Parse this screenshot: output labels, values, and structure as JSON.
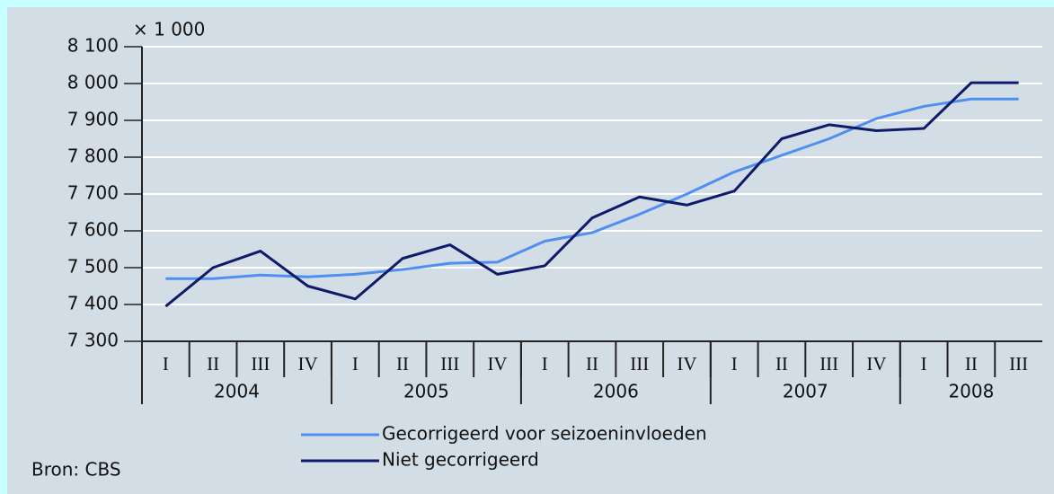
{
  "chart_data": {
    "type": "line",
    "unit_label": "× 1 000",
    "categories": [
      "I",
      "II",
      "III",
      "IV",
      "I",
      "II",
      "III",
      "IV",
      "I",
      "II",
      "III",
      "IV",
      "I",
      "II",
      "III",
      "IV",
      "I",
      "II",
      "III"
    ],
    "groups": [
      {
        "label": "2004",
        "count": 4
      },
      {
        "label": "2005",
        "count": 4
      },
      {
        "label": "2006",
        "count": 4
      },
      {
        "label": "2007",
        "count": 4
      },
      {
        "label": "2008",
        "count": 3
      }
    ],
    "series": [
      {
        "name": "Gecorrigeerd voor seizoeninvloeden",
        "color": "#4f8ff2",
        "values": [
          7470,
          7470,
          7480,
          7475,
          7482,
          7495,
          7512,
          7515,
          7572,
          7595,
          7645,
          7700,
          7760,
          7805,
          7850,
          7905,
          7938,
          7958,
          7958
        ]
      },
      {
        "name": "Niet gecorrigeerd",
        "color": "#0f1a6b",
        "values": [
          7395,
          7500,
          7545,
          7450,
          7415,
          7525,
          7562,
          7482,
          7505,
          7635,
          7692,
          7670,
          7708,
          7850,
          7888,
          7872,
          7878,
          8002,
          8002
        ]
      }
    ],
    "ylim": [
      7300,
      8100
    ],
    "yticks": [
      {
        "value": 7300,
        "label": "7 300"
      },
      {
        "value": 7400,
        "label": "7 400"
      },
      {
        "value": 7500,
        "label": "7 500"
      },
      {
        "value": 7600,
        "label": "7 600"
      },
      {
        "value": 7700,
        "label": "7 700"
      },
      {
        "value": 7800,
        "label": "7 800"
      },
      {
        "value": 7900,
        "label": "7 900"
      },
      {
        "value": 8000,
        "label": "8 000"
      },
      {
        "value": 8100,
        "label": "8 100"
      }
    ],
    "grid": true,
    "source": "Bron: CBS"
  }
}
